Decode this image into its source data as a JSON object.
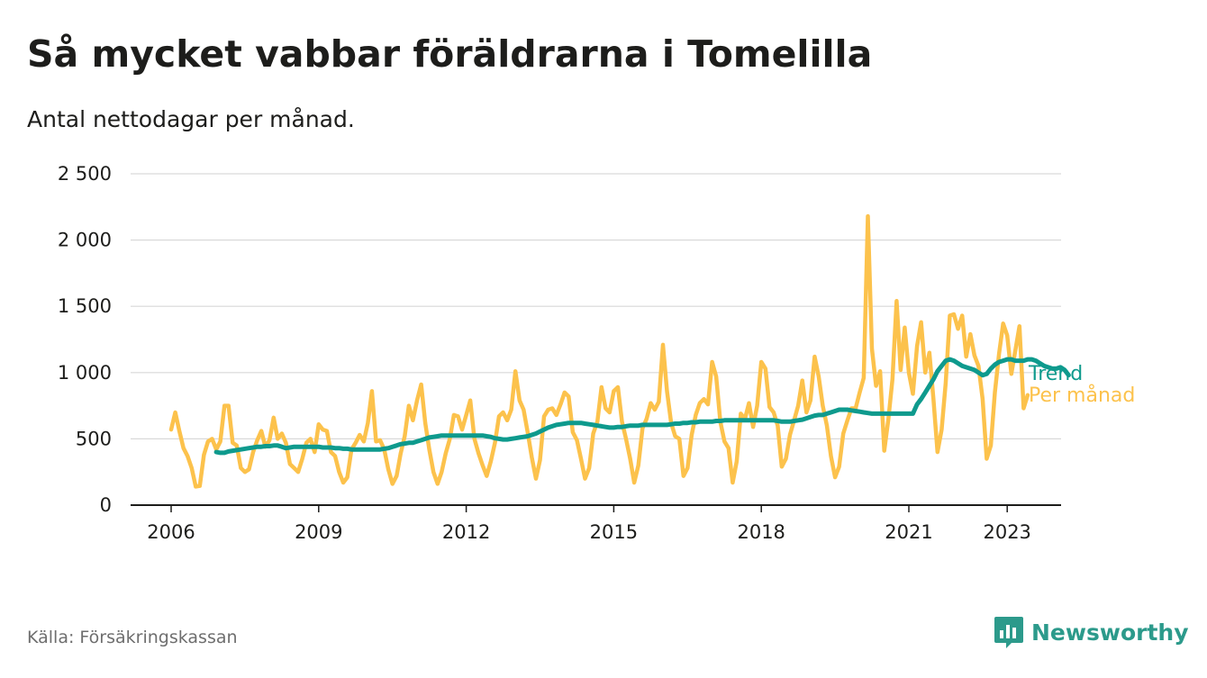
{
  "header": {
    "title": "Så mycket vabbar föräldrarna i Tomelilla",
    "subtitle": "Antal nettodagar per månad."
  },
  "footer": {
    "source": "Källa: Försäkringskassan",
    "brand_name": "Newsworthy",
    "brand_icon": "bar-chart-logo-icon"
  },
  "colors": {
    "monthly": "#fcc24c",
    "trend": "#0e9a8d",
    "grid": "#d9d9d9",
    "axis": "#1d1d1b",
    "brand": "#2c9a8b"
  },
  "chart_data": {
    "type": "line",
    "xlabel": "",
    "ylabel": "",
    "ylim": [
      0,
      2500
    ],
    "y_ticks": [
      {
        "value": 0,
        "label": "0"
      },
      {
        "value": 500,
        "label": "500"
      },
      {
        "value": 1000,
        "label": "1 000"
      },
      {
        "value": 1500,
        "label": "1 500"
      },
      {
        "value": 2000,
        "label": "2 000"
      },
      {
        "value": 2500,
        "label": "2 500"
      }
    ],
    "x_ticks": [
      {
        "value": "2006-01",
        "label": "2006"
      },
      {
        "value": "2009-01",
        "label": "2009"
      },
      {
        "value": "2012-01",
        "label": "2012"
      },
      {
        "value": "2015-01",
        "label": "2015"
      },
      {
        "value": "2018-01",
        "label": "2018"
      },
      {
        "value": "2021-01",
        "label": "2021"
      },
      {
        "value": "2023-01",
        "label": "2023"
      }
    ],
    "grid": "horizontal",
    "legend": "direct labels at line ends",
    "series": [
      {
        "name": "Per månad",
        "start": "2006-01",
        "values": [
          570,
          700,
          560,
          430,
          370,
          280,
          140,
          145,
          380,
          480,
          500,
          420,
          480,
          750,
          750,
          470,
          450,
          280,
          250,
          270,
          400,
          490,
          560,
          440,
          490,
          660,
          500,
          540,
          470,
          310,
          280,
          250,
          350,
          470,
          500,
          400,
          610,
          570,
          560,
          400,
          370,
          250,
          170,
          210,
          420,
          470,
          530,
          480,
          620,
          860,
          480,
          490,
          420,
          270,
          160,
          220,
          390,
          520,
          750,
          640,
          790,
          910,
          620,
          420,
          250,
          160,
          250,
          390,
          500,
          680,
          670,
          570,
          680,
          790,
          500,
          390,
          300,
          220,
          330,
          470,
          670,
          700,
          640,
          720,
          1010,
          790,
          720,
          550,
          360,
          200,
          340,
          670,
          720,
          730,
          680,
          760,
          850,
          820,
          550,
          490,
          350,
          200,
          280,
          540,
          630,
          890,
          730,
          700,
          860,
          890,
          630,
          500,
          350,
          170,
          300,
          580,
          650,
          770,
          720,
          780,
          1210,
          860,
          620,
          520,
          500,
          220,
          280,
          530,
          680,
          770,
          800,
          760,
          1080,
          970,
          630,
          480,
          430,
          170,
          330,
          690,
          650,
          770,
          590,
          750,
          1080,
          1030,
          740,
          700,
          600,
          290,
          350,
          530,
          640,
          750,
          940,
          700,
          790,
          1120,
          970,
          750,
          600,
          370,
          210,
          290,
          540,
          640,
          730,
          730,
          850,
          960,
          2180,
          1180,
          900,
          1010,
          410,
          650,
          950,
          1540,
          1020,
          1340,
          1000,
          840,
          1200,
          1380,
          1000,
          1150,
          800,
          400,
          570,
          920,
          1430,
          1440,
          1330,
          1430,
          1120,
          1290,
          1130,
          1050,
          800,
          350,
          450,
          850,
          1140,
          1370,
          1280,
          990,
          1170,
          1350,
          730,
          830
        ]
      },
      {
        "name": "Trend",
        "start": "2006-12",
        "values": [
          400,
          395,
          395,
          405,
          410,
          415,
          420,
          425,
          430,
          435,
          440,
          440,
          445,
          445,
          450,
          450,
          440,
          430,
          435,
          440,
          440,
          440,
          440,
          440,
          440,
          440,
          435,
          435,
          435,
          430,
          430,
          425,
          425,
          420,
          420,
          420,
          420,
          420,
          420,
          420,
          420,
          425,
          430,
          440,
          450,
          460,
          465,
          470,
          470,
          480,
          490,
          500,
          510,
          515,
          520,
          525,
          525,
          525,
          525,
          525,
          525,
          525,
          525,
          525,
          525,
          525,
          520,
          515,
          505,
          500,
          495,
          495,
          500,
          505,
          510,
          515,
          520,
          530,
          540,
          555,
          570,
          585,
          595,
          605,
          610,
          615,
          620,
          620,
          620,
          620,
          615,
          610,
          605,
          600,
          595,
          590,
          585,
          585,
          590,
          590,
          595,
          600,
          600,
          600,
          605,
          605,
          605,
          605,
          605,
          605,
          605,
          610,
          615,
          615,
          620,
          620,
          625,
          625,
          630,
          630,
          630,
          630,
          635,
          635,
          640,
          640,
          640,
          640,
          640,
          640,
          640,
          640,
          640,
          640,
          640,
          640,
          640,
          635,
          630,
          630,
          630,
          635,
          640,
          645,
          655,
          665,
          675,
          680,
          680,
          690,
          700,
          710,
          720,
          720,
          720,
          715,
          710,
          705,
          700,
          695,
          690,
          690,
          690,
          690,
          690,
          690,
          690,
          690,
          690,
          690,
          690,
          760,
          800,
          850,
          900,
          950,
          1010,
          1050,
          1090,
          1100,
          1090,
          1070,
          1050,
          1040,
          1030,
          1020,
          1000,
          980,
          990,
          1030,
          1060,
          1080,
          1090,
          1100,
          1100,
          1090,
          1090,
          1090,
          1100,
          1100,
          1090,
          1070,
          1050,
          1040,
          1030,
          1030,
          1040,
          1020,
          980
        ]
      }
    ]
  }
}
